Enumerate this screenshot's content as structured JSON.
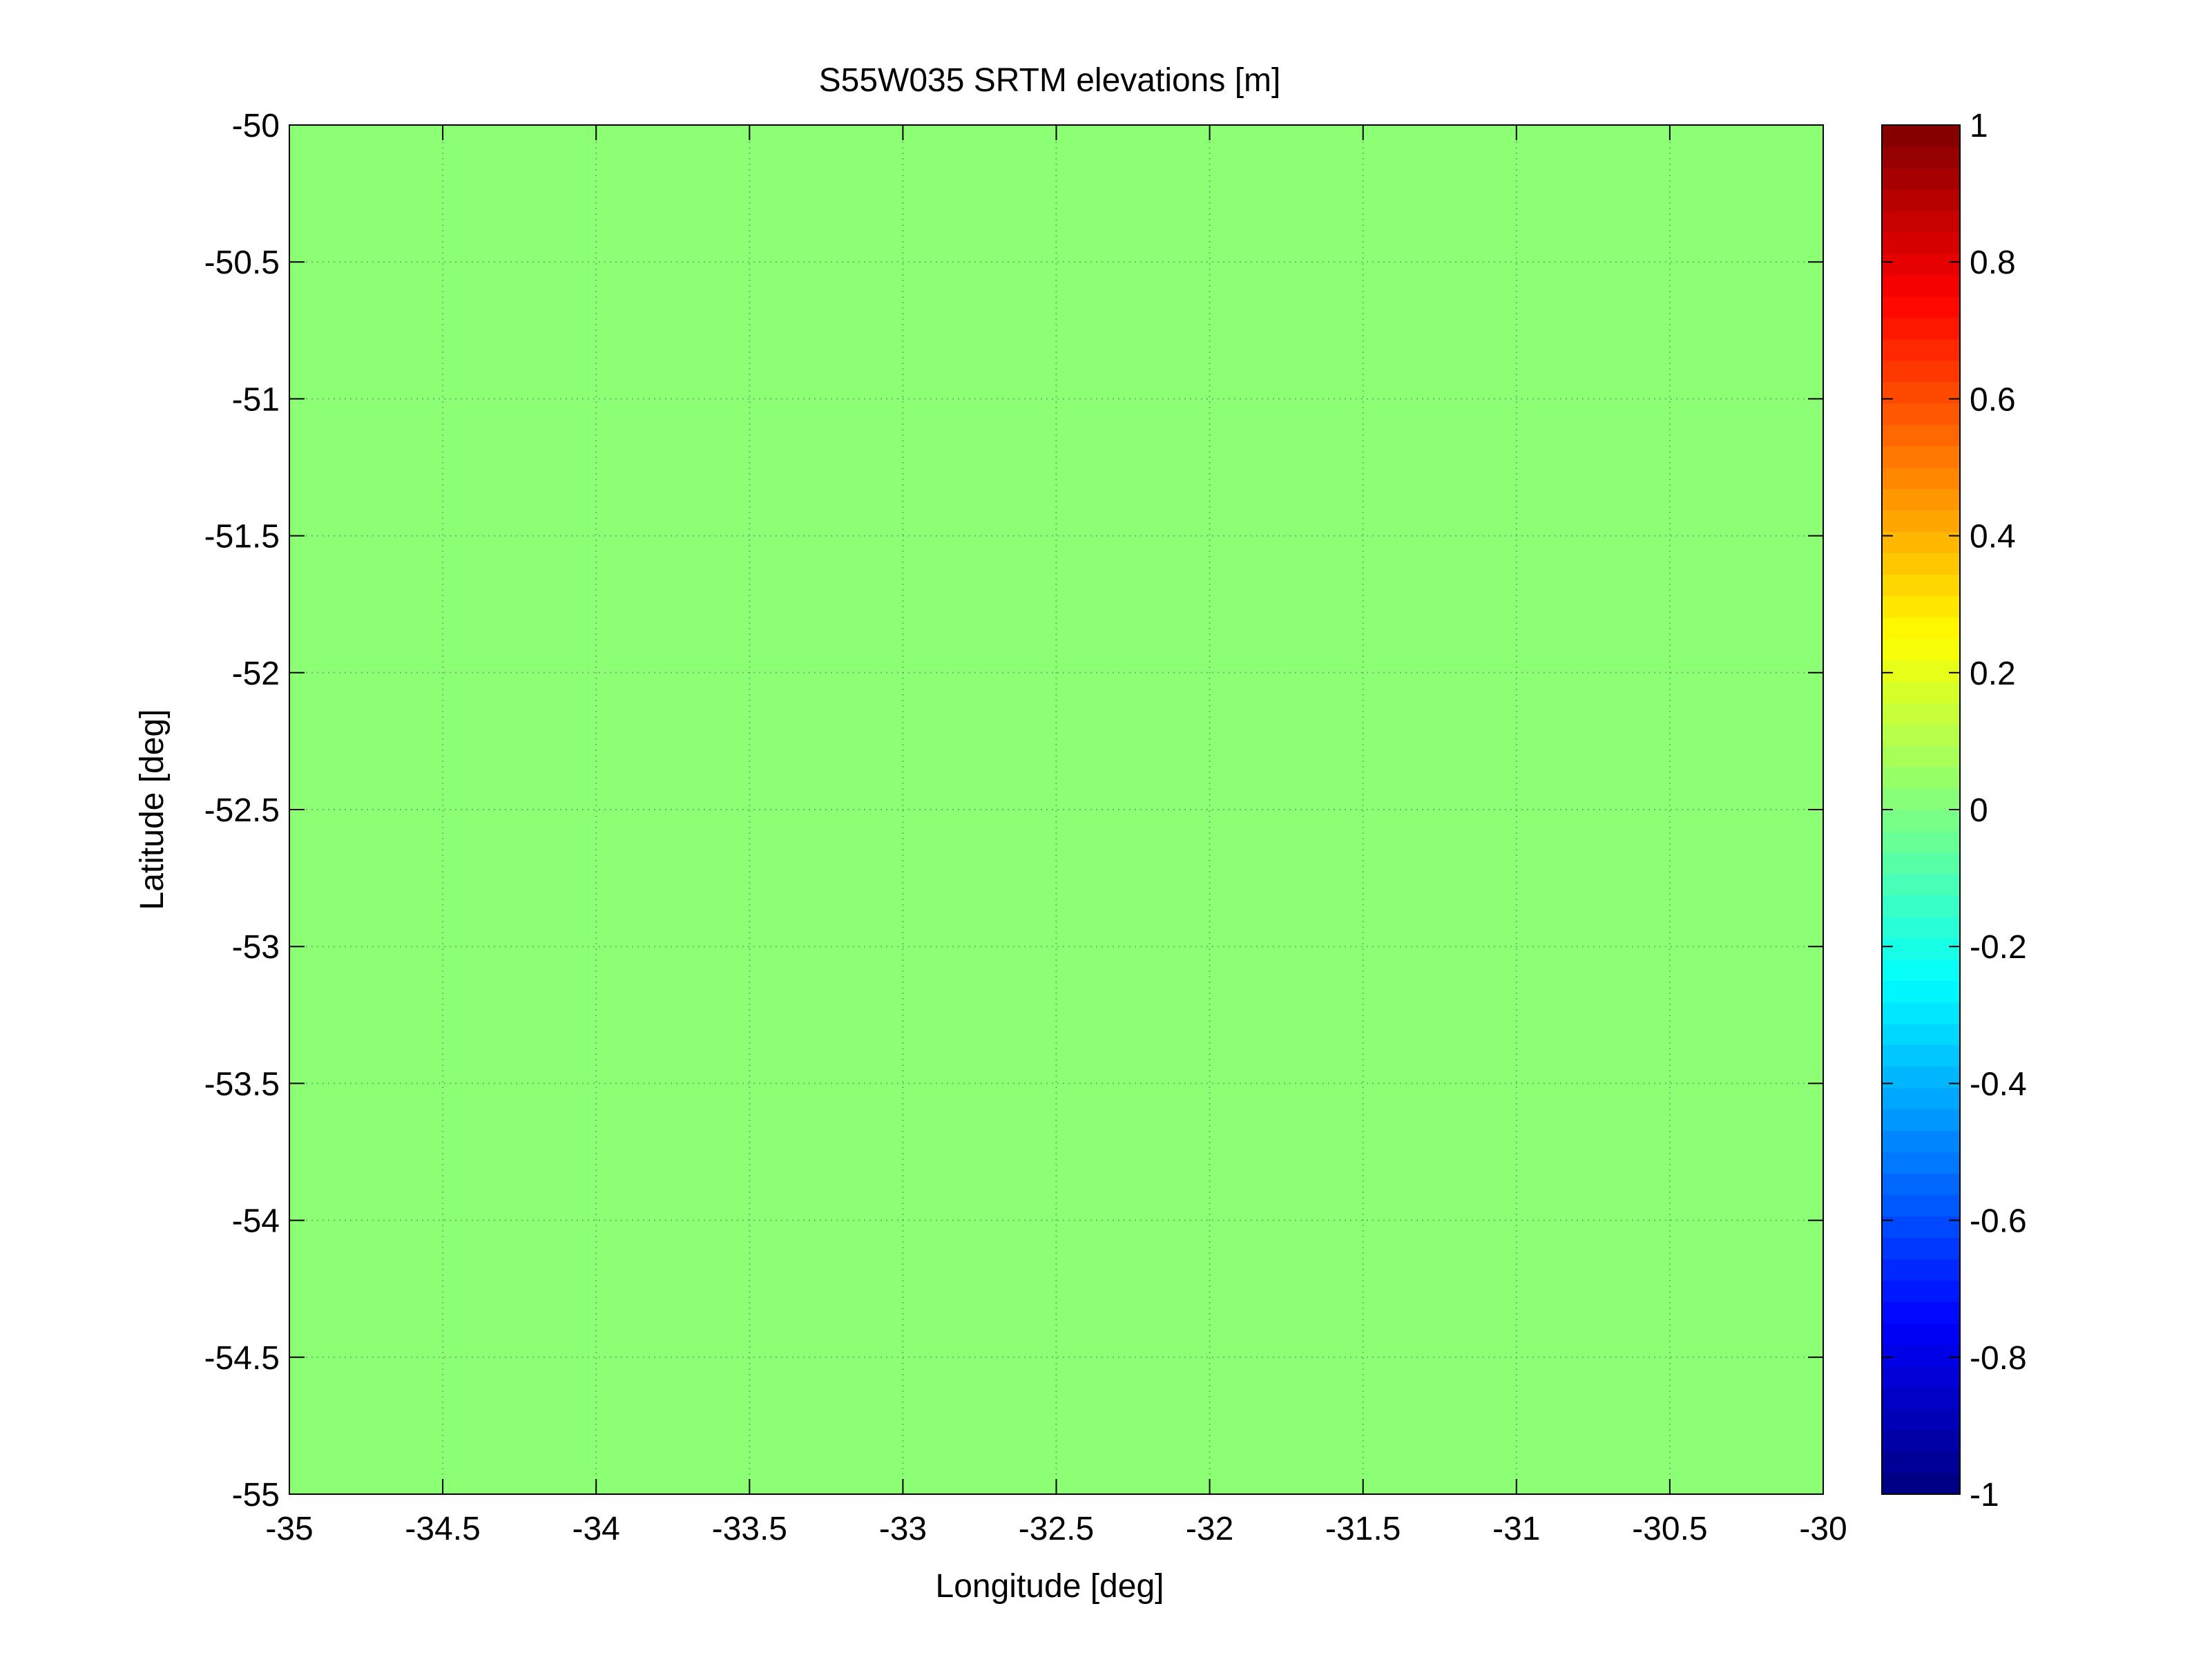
{
  "chart_data": {
    "type": "heatmap",
    "title": "S55W035 SRTM elevations [m]",
    "xlabel": "Longitude [deg]",
    "ylabel": "Latitude [deg]",
    "xlim": [
      -35,
      -30
    ],
    "ylim": [
      -55,
      -50
    ],
    "x_ticks": [
      -35,
      -34.5,
      -34,
      -33.5,
      -33,
      -32.5,
      -32,
      -31.5,
      -31,
      -30.5,
      -30
    ],
    "x_tick_labels": [
      "-35",
      "-34.5",
      "-34",
      "-33.5",
      "-33",
      "-32.5",
      "-32",
      "-31.5",
      "-31",
      "-30.5",
      "-30"
    ],
    "y_ticks": [
      -50,
      -50.5,
      -51,
      -51.5,
      -52,
      -52.5,
      -53,
      -53.5,
      -54,
      -54.5,
      -55
    ],
    "y_tick_labels": [
      "-50",
      "-50.5",
      "-51",
      "-51.5",
      "-52",
      "-52.5",
      "-53",
      "-53.5",
      "-54",
      "-54.5",
      "-55"
    ],
    "grid": true,
    "values": [
      [
        0
      ]
    ],
    "fill_value": 0,
    "fill_color": "#8cff74",
    "colorbar": {
      "colormap": "jet",
      "levels": 64,
      "clim": [
        -1,
        1
      ],
      "ticks": [
        1,
        0.8,
        0.6,
        0.4,
        0.2,
        0,
        -0.2,
        -0.4,
        -0.6,
        -0.8,
        -1
      ],
      "tick_labels": [
        "1",
        "0.8",
        "0.6",
        "0.4",
        "0.2",
        "0",
        "-0.2",
        "-0.4",
        "-0.6",
        "-0.8",
        "-1"
      ],
      "position": "right"
    }
  }
}
